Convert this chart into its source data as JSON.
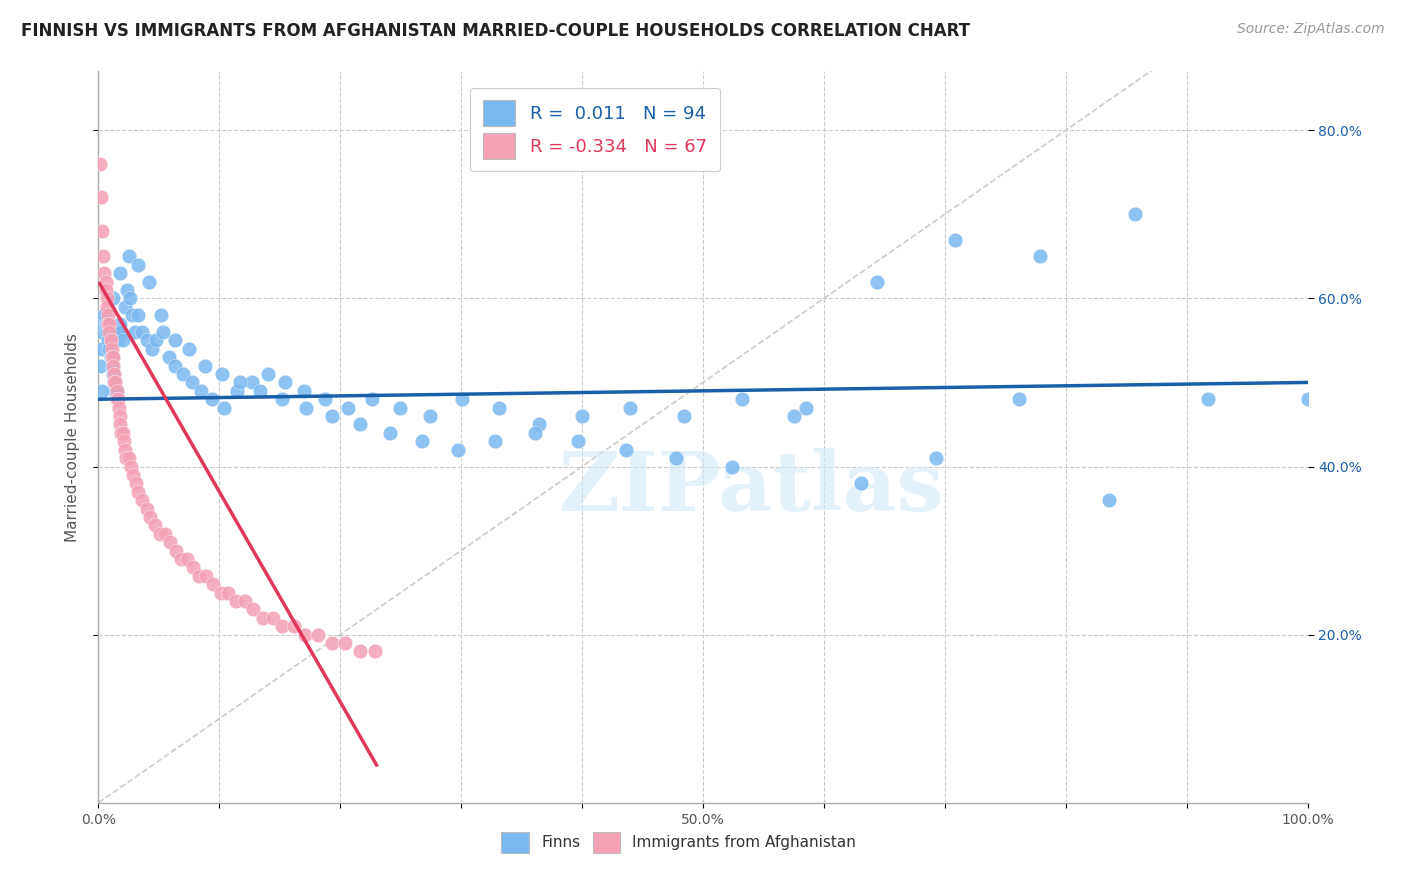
{
  "title": "FINNISH VS IMMIGRANTS FROM AFGHANISTAN MARRIED-COUPLE HOUSEHOLDS CORRELATION CHART",
  "source": "Source: ZipAtlas.com",
  "ylabel": "Married-couple Households",
  "xlim": [
    0.0,
    1.0
  ],
  "ylim": [
    0.0,
    0.87
  ],
  "xtick_vals": [
    0.0,
    0.1,
    0.2,
    0.3,
    0.4,
    0.5,
    0.6,
    0.7,
    0.8,
    0.9,
    1.0
  ],
  "xticklabels": [
    "0.0%",
    "",
    "",
    "",
    "",
    "50.0%",
    "",
    "",
    "",
    "",
    "100.0%"
  ],
  "ytick_vals": [
    0.2,
    0.4,
    0.6,
    0.8
  ],
  "yticklabels": [
    "20.0%",
    "40.0%",
    "60.0%",
    "80.0%"
  ],
  "finn_color": "#7ab8f0",
  "afghan_color": "#f4a0b5",
  "finn_line_color": "#1a5fa8",
  "afghan_line_color": "#e0385a",
  "diagonal_color": "#cccccc",
  "r_finn": 0.011,
  "n_finn": 94,
  "r_afghan": -0.334,
  "n_afghan": 67,
  "legend_label_finn": "Finns",
  "legend_label_afghan": "Immigrants from Afghanistan",
  "watermark": "ZIPatlas",
  "finn_slope": 0.0,
  "finn_intercept": 0.48,
  "afghan_slope": -2.5,
  "afghan_intercept": 0.62,
  "finn_x": [
    0.001,
    0.002,
    0.003,
    0.004,
    0.005,
    0.006,
    0.007,
    0.008,
    0.009,
    0.01,
    0.011,
    0.012,
    0.013,
    0.014,
    0.015,
    0.016,
    0.017,
    0.018,
    0.019,
    0.02,
    0.022,
    0.024,
    0.026,
    0.028,
    0.03,
    0.033,
    0.036,
    0.04,
    0.044,
    0.048,
    0.053,
    0.058,
    0.063,
    0.07,
    0.077,
    0.085,
    0.094,
    0.104,
    0.115,
    0.127,
    0.14,
    0.154,
    0.17,
    0.187,
    0.206,
    0.226,
    0.249,
    0.274,
    0.301,
    0.331,
    0.364,
    0.4,
    0.44,
    0.484,
    0.532,
    0.585,
    0.644,
    0.708,
    0.779,
    0.857,
    0.003,
    0.007,
    0.012,
    0.018,
    0.025,
    0.033,
    0.042,
    0.052,
    0.063,
    0.075,
    0.088,
    0.102,
    0.117,
    0.134,
    0.152,
    0.172,
    0.193,
    0.216,
    0.241,
    0.268,
    0.297,
    0.328,
    0.361,
    0.397,
    0.436,
    0.478,
    0.524,
    0.575,
    0.631,
    0.693,
    0.761,
    0.836,
    0.918,
    1.0
  ],
  "finn_y": [
    0.52,
    0.54,
    0.56,
    0.57,
    0.58,
    0.57,
    0.56,
    0.55,
    0.54,
    0.53,
    0.52,
    0.51,
    0.5,
    0.49,
    0.49,
    0.55,
    0.56,
    0.57,
    0.56,
    0.55,
    0.59,
    0.61,
    0.6,
    0.58,
    0.56,
    0.58,
    0.56,
    0.55,
    0.54,
    0.55,
    0.56,
    0.53,
    0.52,
    0.51,
    0.5,
    0.49,
    0.48,
    0.47,
    0.49,
    0.5,
    0.51,
    0.5,
    0.49,
    0.48,
    0.47,
    0.48,
    0.47,
    0.46,
    0.48,
    0.47,
    0.45,
    0.46,
    0.47,
    0.46,
    0.48,
    0.47,
    0.62,
    0.67,
    0.65,
    0.7,
    0.49,
    0.57,
    0.6,
    0.63,
    0.65,
    0.64,
    0.62,
    0.58,
    0.55,
    0.54,
    0.52,
    0.51,
    0.5,
    0.49,
    0.48,
    0.47,
    0.46,
    0.45,
    0.44,
    0.43,
    0.42,
    0.43,
    0.44,
    0.43,
    0.42,
    0.41,
    0.4,
    0.46,
    0.38,
    0.41,
    0.48,
    0.36,
    0.48,
    0.48
  ],
  "afghan_x": [
    0.001,
    0.002,
    0.003,
    0.004,
    0.005,
    0.006,
    0.006,
    0.007,
    0.007,
    0.008,
    0.008,
    0.009,
    0.009,
    0.01,
    0.01,
    0.011,
    0.011,
    0.012,
    0.012,
    0.013,
    0.013,
    0.014,
    0.015,
    0.015,
    0.016,
    0.017,
    0.018,
    0.018,
    0.019,
    0.02,
    0.021,
    0.022,
    0.023,
    0.025,
    0.027,
    0.029,
    0.031,
    0.033,
    0.036,
    0.04,
    0.043,
    0.047,
    0.051,
    0.055,
    0.059,
    0.064,
    0.068,
    0.073,
    0.078,
    0.083,
    0.089,
    0.095,
    0.101,
    0.107,
    0.114,
    0.121,
    0.128,
    0.136,
    0.144,
    0.152,
    0.162,
    0.171,
    0.182,
    0.193,
    0.204,
    0.216,
    0.229
  ],
  "afghan_y": [
    0.76,
    0.72,
    0.68,
    0.65,
    0.63,
    0.62,
    0.61,
    0.6,
    0.59,
    0.58,
    0.57,
    0.57,
    0.56,
    0.55,
    0.55,
    0.54,
    0.53,
    0.53,
    0.52,
    0.51,
    0.5,
    0.5,
    0.49,
    0.48,
    0.48,
    0.47,
    0.46,
    0.45,
    0.44,
    0.44,
    0.43,
    0.42,
    0.41,
    0.41,
    0.4,
    0.39,
    0.38,
    0.37,
    0.36,
    0.35,
    0.34,
    0.33,
    0.32,
    0.32,
    0.31,
    0.3,
    0.29,
    0.29,
    0.28,
    0.27,
    0.27,
    0.26,
    0.25,
    0.25,
    0.24,
    0.24,
    0.23,
    0.22,
    0.22,
    0.21,
    0.21,
    0.2,
    0.2,
    0.19,
    0.19,
    0.18,
    0.18
  ]
}
